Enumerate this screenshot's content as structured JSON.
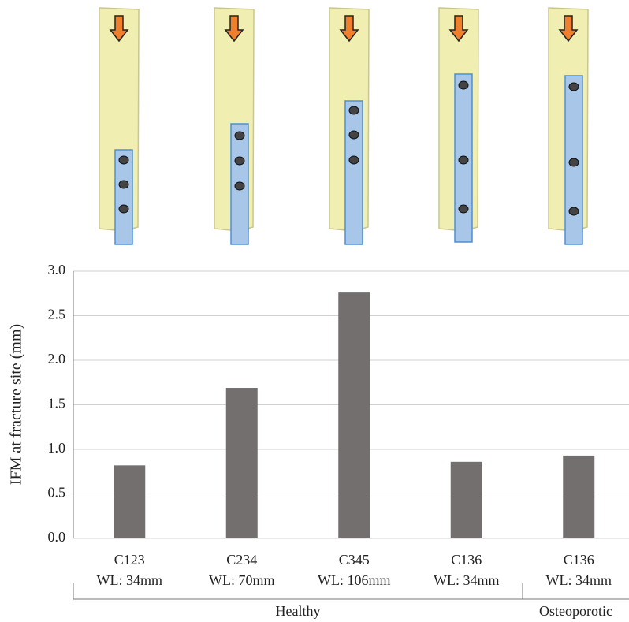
{
  "chart_data": {
    "type": "bar",
    "y_label": "IFM at fracture site (mm)",
    "categories": [
      "C123",
      "C234",
      "C345",
      "C136",
      "C136"
    ],
    "category_sublabels": [
      "WL: 34mm",
      "WL: 70mm",
      "WL: 106mm",
      "WL: 34mm",
      "WL: 34mm"
    ],
    "groups": [
      {
        "label": "Healthy",
        "span": 4
      },
      {
        "label": "Osteoporotic",
        "span": 1
      }
    ],
    "values": [
      0.82,
      1.69,
      2.76,
      0.86,
      0.93
    ],
    "color": "#746f6f",
    "ylim": [
      0,
      3
    ],
    "yticks": [
      {
        "value": 0,
        "label": "0.0"
      },
      0.5,
      {
        "value": 1,
        "label": "1.0"
      },
      1.5,
      {
        "value": 2,
        "label": "2.0"
      },
      2.5,
      {
        "value": 3,
        "label": "3.0"
      }
    ],
    "grid": true
  }
}
